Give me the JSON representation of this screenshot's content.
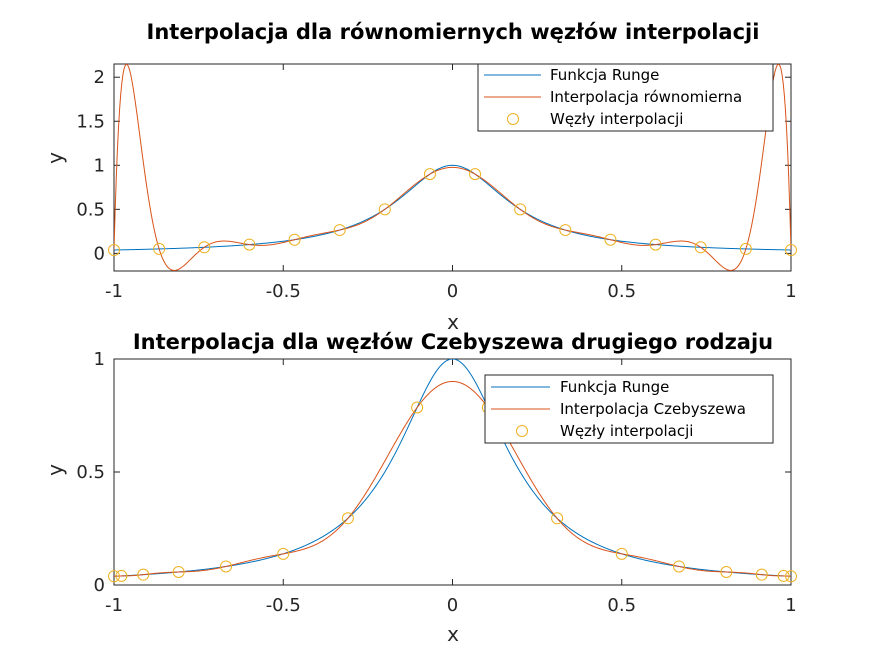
{
  "chart_data": [
    {
      "type": "line",
      "title": "Interpolacja dla równomiernych węzłów interpolacji",
      "xlabel": "x",
      "ylabel": "y",
      "xlim": [
        -1,
        1
      ],
      "ylim": [
        -0.2,
        2.15
      ],
      "xticks": [
        -1,
        -0.5,
        0,
        0.5,
        1
      ],
      "xtick_labels": [
        "-1",
        "-0.5",
        "0",
        "0.5",
        "1"
      ],
      "yticks": [
        0,
        0.5,
        1,
        1.5,
        2
      ],
      "ytick_labels": [
        "0",
        "0.5",
        "1",
        "1.5",
        "2"
      ],
      "legend_position": "top-right",
      "series": [
        {
          "name": "Funkcja Runge",
          "style": "line",
          "color": "#0072BD",
          "function": "runge"
        },
        {
          "name": "Interpolacja równomierna",
          "style": "line",
          "color": "#D95319",
          "function": "interp_nodes"
        },
        {
          "name": "Węzły interpolacji",
          "style": "markers",
          "marker": "circle",
          "color": "#EDB120",
          "nodes": "equidistant",
          "count": 16
        }
      ]
    },
    {
      "type": "line",
      "title": "Interpolacja dla węzłów Czebyszewa drugiego rodzaju",
      "xlabel": "x",
      "ylabel": "y",
      "xlim": [
        -1,
        1
      ],
      "ylim": [
        0,
        1
      ],
      "xticks": [
        -1,
        -0.5,
        0,
        0.5,
        1
      ],
      "xtick_labels": [
        "-1",
        "-0.5",
        "0",
        "0.5",
        "1"
      ],
      "yticks": [
        0,
        0.5,
        1
      ],
      "ytick_labels": [
        "0",
        "0.5",
        "1"
      ],
      "legend_position": "top-right",
      "series": [
        {
          "name": "Funkcja Runge",
          "style": "line",
          "color": "#0072BD",
          "function": "runge"
        },
        {
          "name": "Interpolacja Czebyszewa",
          "style": "line",
          "color": "#D95319",
          "function": "interp_nodes"
        },
        {
          "name": "Węzły interpolacji",
          "style": "markers",
          "marker": "circle",
          "color": "#EDB120",
          "nodes": "chebyshev_second_kind",
          "count": 16
        }
      ]
    }
  ]
}
